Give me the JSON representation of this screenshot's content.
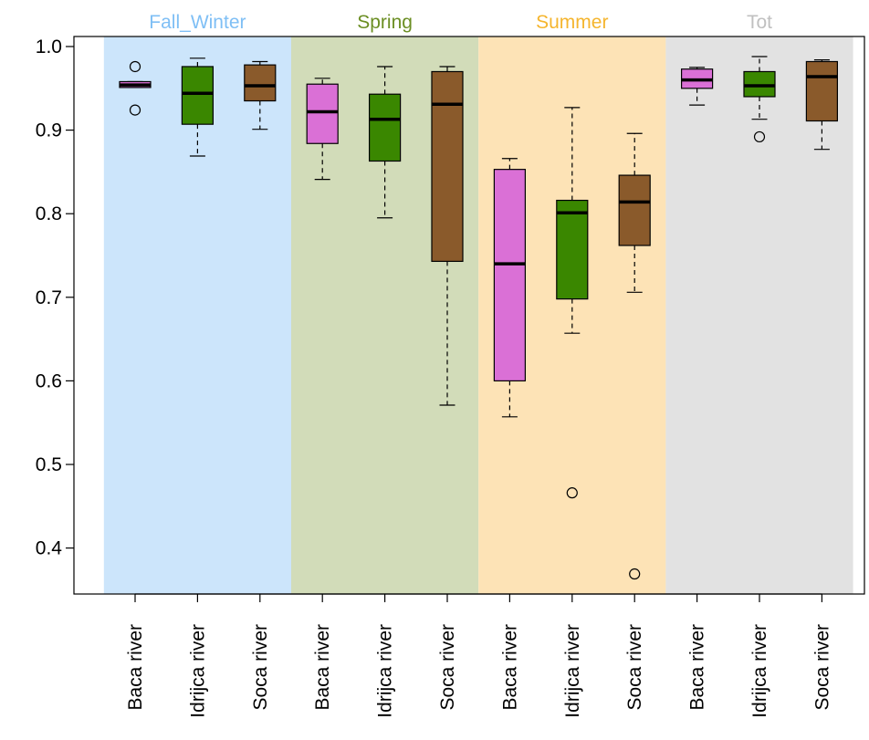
{
  "chart_data": {
    "type": "boxplot",
    "title": "",
    "xlabel": "",
    "ylabel": "",
    "ylim": [
      0.345,
      1.012
    ],
    "y_ticks": [
      "0.4",
      "0.5",
      "0.6",
      "0.7",
      "0.8",
      "0.9",
      "1.0"
    ],
    "grid": false,
    "legend": "none",
    "groups": [
      {
        "label": "Fall_Winter",
        "label_color": "#7fbff5",
        "band_color": "#cce5fb"
      },
      {
        "label": "Spring",
        "label_color": "#6b8e23",
        "band_color": "#d2dcb9"
      },
      {
        "label": "Summer",
        "label_color": "#f5b52e",
        "band_color": "#fde3b6"
      },
      {
        "label": "Tot",
        "label_color": "#c0c0c0",
        "band_color": "#e2e2e2"
      }
    ],
    "series_colors": {
      "Baca river": "#da70d6",
      "Idrijca river": "#3a8700",
      "Soca river": "#8a5a2b"
    },
    "boxes": [
      {
        "group": "Fall_Winter",
        "category": "Baca river",
        "whisker_low": 0.951,
        "q1": 0.951,
        "median": 0.954,
        "q3": 0.958,
        "whisker_high": 0.958,
        "outliers": [
          0.976,
          0.924
        ]
      },
      {
        "group": "Fall_Winter",
        "category": "Idrijca river",
        "whisker_low": 0.869,
        "q1": 0.907,
        "median": 0.944,
        "q3": 0.976,
        "whisker_high": 0.986,
        "outliers": []
      },
      {
        "group": "Fall_Winter",
        "category": "Soca river",
        "whisker_low": 0.901,
        "q1": 0.935,
        "median": 0.953,
        "q3": 0.978,
        "whisker_high": 0.982,
        "outliers": []
      },
      {
        "group": "Spring",
        "category": "Baca river",
        "whisker_low": 0.841,
        "q1": 0.884,
        "median": 0.922,
        "q3": 0.955,
        "whisker_high": 0.962,
        "outliers": []
      },
      {
        "group": "Spring",
        "category": "Idrijca river",
        "whisker_low": 0.795,
        "q1": 0.863,
        "median": 0.913,
        "q3": 0.943,
        "whisker_high": 0.976,
        "outliers": []
      },
      {
        "group": "Spring",
        "category": "Soca river",
        "whisker_low": 0.571,
        "q1": 0.743,
        "median": 0.931,
        "q3": 0.97,
        "whisker_high": 0.976,
        "outliers": []
      },
      {
        "group": "Summer",
        "category": "Baca river",
        "whisker_low": 0.557,
        "q1": 0.6,
        "median": 0.74,
        "q3": 0.853,
        "whisker_high": 0.866,
        "outliers": []
      },
      {
        "group": "Summer",
        "category": "Idrijca river",
        "whisker_low": 0.657,
        "q1": 0.698,
        "median": 0.801,
        "q3": 0.816,
        "whisker_high": 0.927,
        "outliers": [
          0.466
        ]
      },
      {
        "group": "Summer",
        "category": "Soca river",
        "whisker_low": 0.706,
        "q1": 0.762,
        "median": 0.814,
        "q3": 0.846,
        "whisker_high": 0.896,
        "outliers": [
          0.369
        ]
      },
      {
        "group": "Tot",
        "category": "Baca river",
        "whisker_low": 0.93,
        "q1": 0.95,
        "median": 0.96,
        "q3": 0.973,
        "whisker_high": 0.975,
        "outliers": []
      },
      {
        "group": "Tot",
        "category": "Idrijca river",
        "whisker_low": 0.913,
        "q1": 0.94,
        "median": 0.953,
        "q3": 0.97,
        "whisker_high": 0.988,
        "outliers": [
          0.892
        ]
      },
      {
        "group": "Tot",
        "category": "Soca river",
        "whisker_low": 0.877,
        "q1": 0.911,
        "median": 0.964,
        "q3": 0.982,
        "whisker_high": 0.984,
        "outliers": []
      }
    ]
  }
}
